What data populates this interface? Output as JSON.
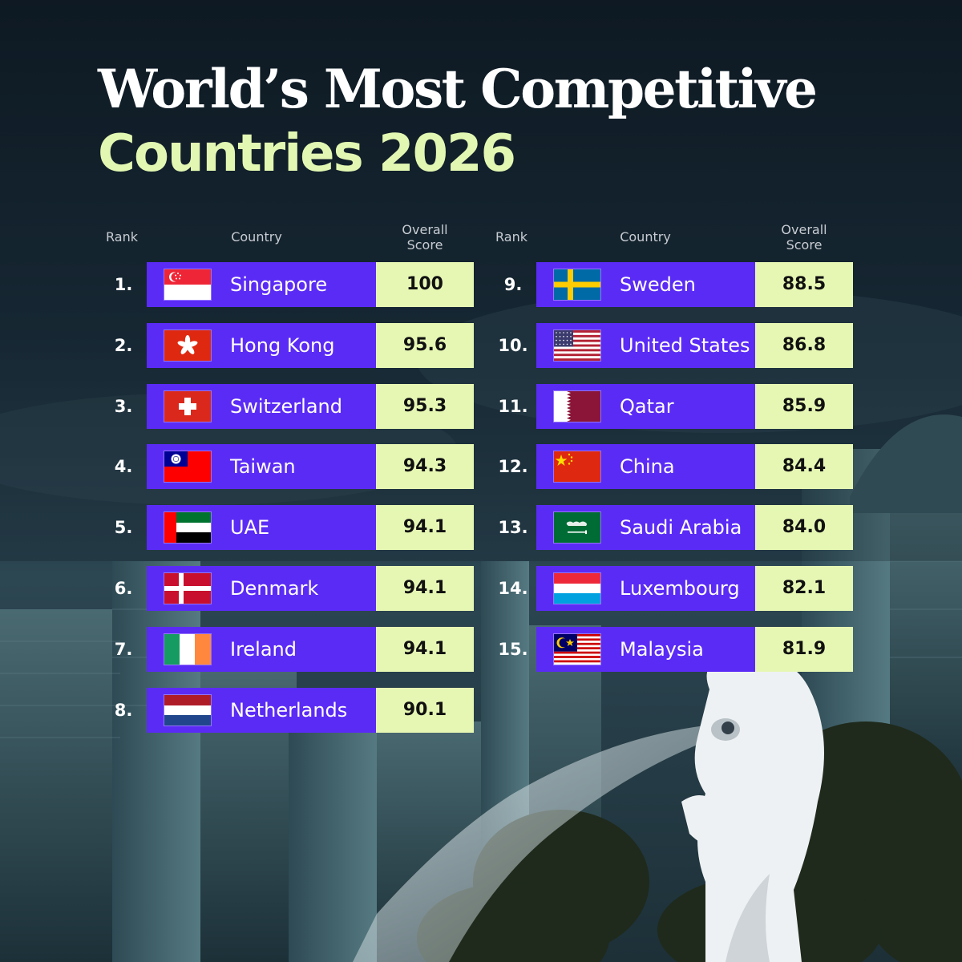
{
  "title": {
    "line1": "World’s Most Competitive",
    "line2": "Countries 2026"
  },
  "headers": {
    "rank": "Rank",
    "country": "Country",
    "score_line1": "Overall",
    "score_line2": "Score"
  },
  "colors": {
    "bar": "#5b2bf6",
    "score_cell": "#e6f7b4",
    "title_accent": "#e2f7b2"
  },
  "background_scene": "singapore-skyline-merlion",
  "left_rows": [
    {
      "rank": "1.",
      "country": "Singapore",
      "score": "100",
      "flag": "singapore-flag-icon"
    },
    {
      "rank": "2.",
      "country": "Hong Kong",
      "score": "95.6",
      "flag": "hong-kong-flag-icon"
    },
    {
      "rank": "3.",
      "country": "Switzerland",
      "score": "95.3",
      "flag": "switzerland-flag-icon"
    },
    {
      "rank": "4.",
      "country": "Taiwan",
      "score": "94.3",
      "flag": "taiwan-flag-icon"
    },
    {
      "rank": "5.",
      "country": "UAE",
      "score": "94.1",
      "flag": "uae-flag-icon"
    },
    {
      "rank": "6.",
      "country": "Denmark",
      "score": "94.1",
      "flag": "denmark-flag-icon"
    },
    {
      "rank": "7.",
      "country": "Ireland",
      "score": "94.1",
      "flag": "ireland-flag-icon"
    },
    {
      "rank": "8.",
      "country": "Netherlands",
      "score": "90.1",
      "flag": "netherlands-flag-icon"
    }
  ],
  "right_rows": [
    {
      "rank": "9.",
      "country": "Sweden",
      "score": "88.5",
      "flag": "sweden-flag-icon"
    },
    {
      "rank": "10.",
      "country": "United States",
      "score": "86.8",
      "flag": "united-states-flag-icon"
    },
    {
      "rank": "11.",
      "country": "Qatar",
      "score": "85.9",
      "flag": "qatar-flag-icon"
    },
    {
      "rank": "12.",
      "country": "China",
      "score": "84.4",
      "flag": "china-flag-icon"
    },
    {
      "rank": "13.",
      "country": "Saudi Arabia",
      "score": "84.0",
      "flag": "saudi-arabia-flag-icon"
    },
    {
      "rank": "14.",
      "country": "Luxembourg",
      "score": "82.1",
      "flag": "luxembourg-flag-icon"
    },
    {
      "rank": "15.",
      "country": "Malaysia",
      "score": "81.9",
      "flag": "malaysia-flag-icon"
    }
  ]
}
